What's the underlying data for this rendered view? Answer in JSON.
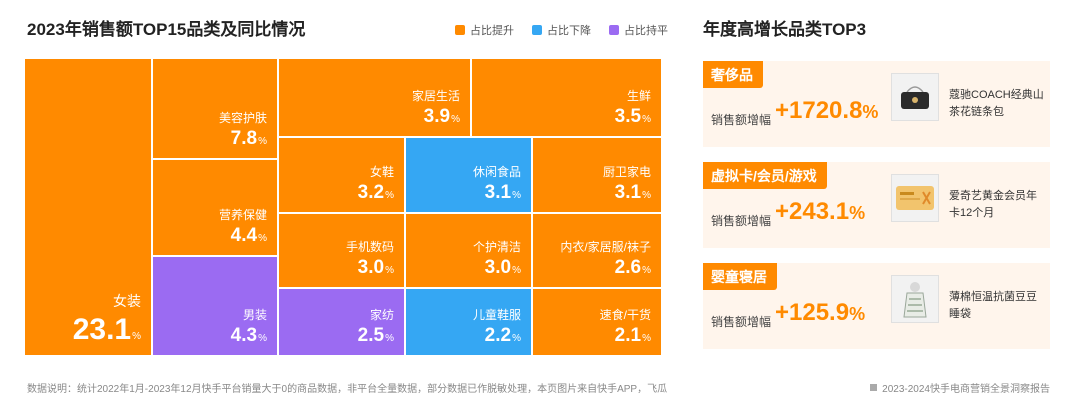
{
  "title": "2023年销售额TOP15品类及同比情况",
  "legend": [
    {
      "label": "占比提升",
      "color": "#ff8a00"
    },
    {
      "label": "占比下降",
      "color": "#35a7f3"
    },
    {
      "label": "占比持平",
      "color": "#9b6bf2"
    }
  ],
  "percent_sign": "%",
  "chart_data": {
    "type": "treemap",
    "title": "2023年销售额TOP15品类及同比情况",
    "unit": "%",
    "items": [
      {
        "name": "女装",
        "value": 23.1,
        "status": "占比提升"
      },
      {
        "name": "美容护肤",
        "value": 7.8,
        "status": "占比提升"
      },
      {
        "name": "营养保健",
        "value": 4.4,
        "status": "占比提升"
      },
      {
        "name": "男装",
        "value": 4.3,
        "status": "占比持平"
      },
      {
        "name": "家居生活",
        "value": 3.9,
        "status": "占比提升"
      },
      {
        "name": "生鲜",
        "value": 3.5,
        "status": "占比提升"
      },
      {
        "name": "女鞋",
        "value": 3.2,
        "status": "占比提升"
      },
      {
        "name": "休闲食品",
        "value": 3.1,
        "status": "占比下降"
      },
      {
        "name": "厨卫家电",
        "value": 3.1,
        "status": "占比提升"
      },
      {
        "name": "手机数码",
        "value": 3.0,
        "status": "占比提升"
      },
      {
        "name": "个护清洁",
        "value": 3.0,
        "status": "占比提升"
      },
      {
        "name": "内衣/家居服/袜子",
        "value": 2.6,
        "status": "占比提升"
      },
      {
        "name": "家纺",
        "value": 2.5,
        "status": "占比持平"
      },
      {
        "name": "儿童鞋服",
        "value": 2.2,
        "status": "占比下降"
      },
      {
        "name": "速食/干货",
        "value": 2.1,
        "status": "占比提升"
      }
    ]
  },
  "right_panel": {
    "title": "年度高增长品类TOP3",
    "metric_label": "销售额增幅",
    "cards": [
      {
        "category": "奢侈品",
        "growth": "+1720.8",
        "product": "蔻驰COACH经典山茶花链条包",
        "thumb_icon": "handbag-icon"
      },
      {
        "category": "虚拟卡/会员/游戏",
        "growth": "+243.1",
        "product": "爱奇艺黄金会员年卡12个月",
        "thumb_icon": "membership-card-icon"
      },
      {
        "category": "婴童寝居",
        "growth": "+125.9",
        "product": "薄棉恒温抗菌豆豆睡袋",
        "thumb_icon": "sleeping-bag-icon"
      }
    ]
  },
  "footnote": "数据说明：统计2022年1月-2023年12月快手平台销量大于0的商品数据，非平台全量数据，部分数据已作脱敏处理，本页图片来自快手APP，飞瓜",
  "report_name": "2023-2024快手电商营销全景洞察报告"
}
